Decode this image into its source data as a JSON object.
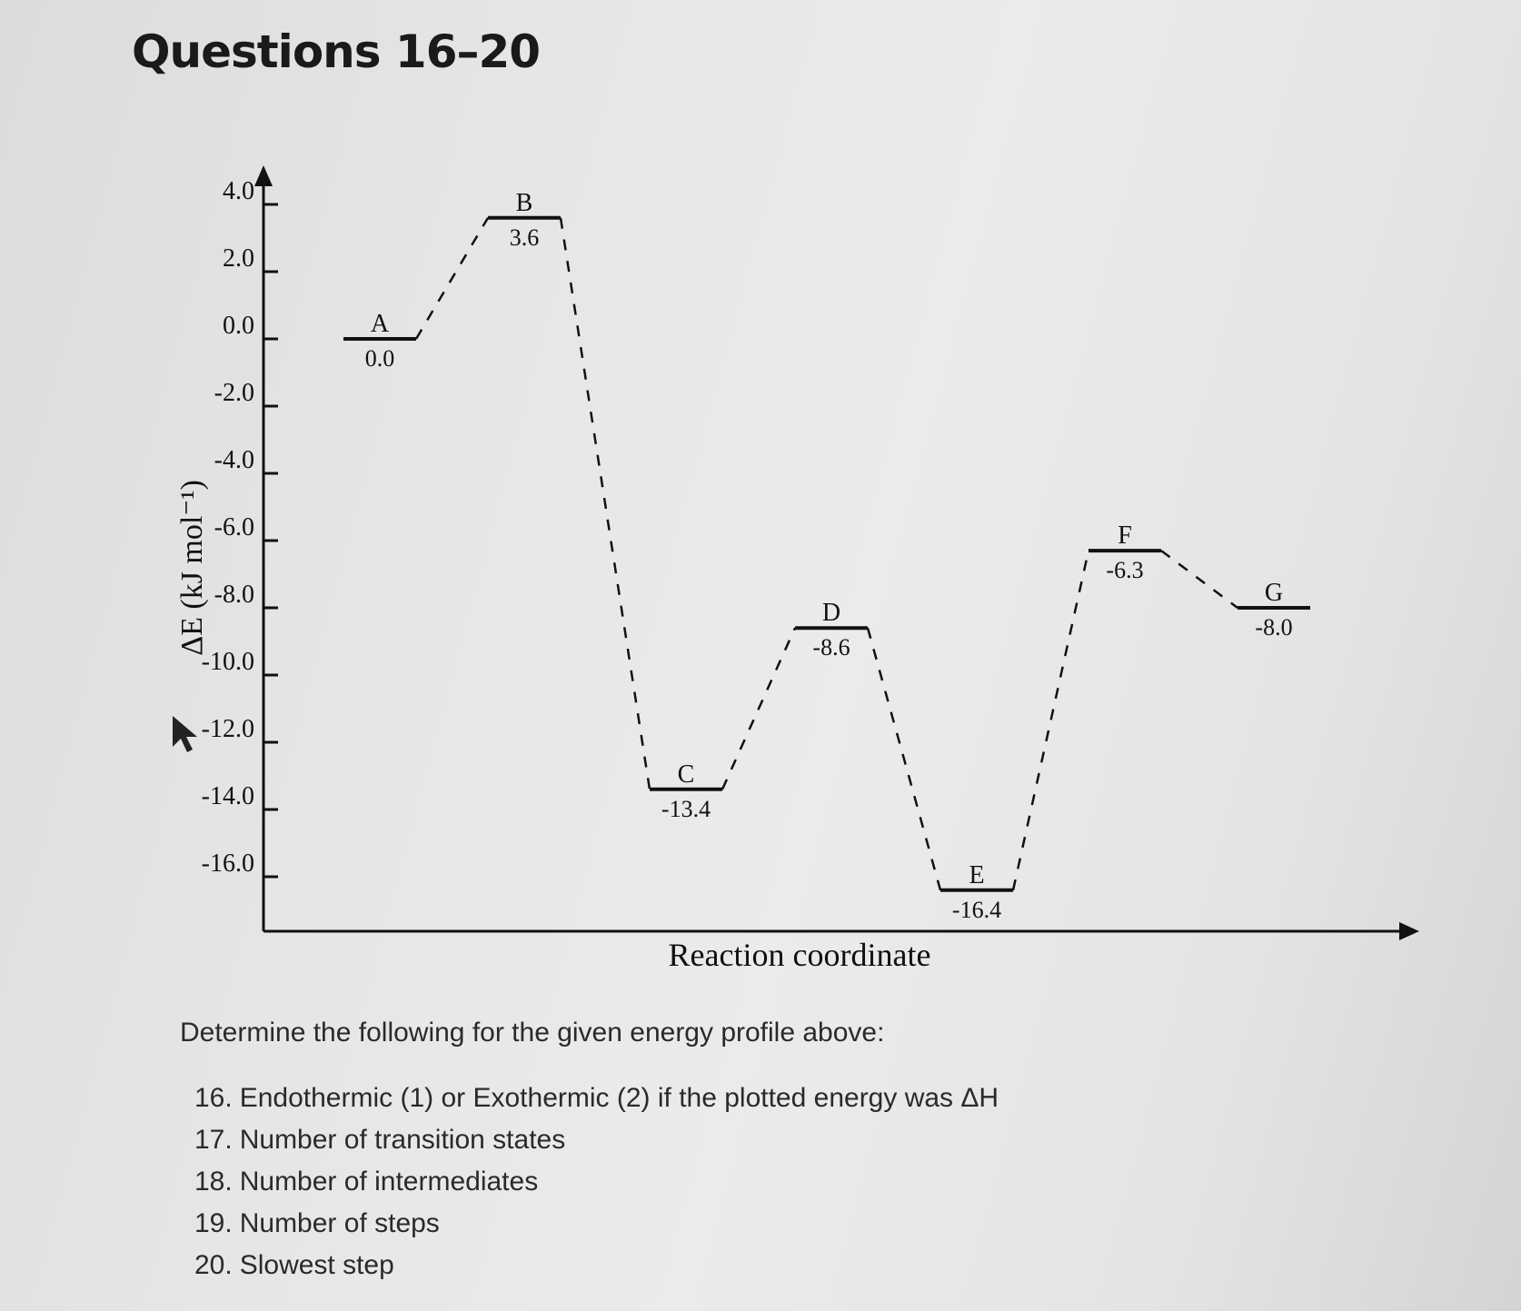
{
  "header": {
    "title": "Questions 16–20"
  },
  "chart_data": {
    "type": "line",
    "subtype": "energy-profile",
    "title": "",
    "xlabel": "Reaction coordinate",
    "ylabel": "ΔE (kJ mol⁻¹)",
    "ylim": [
      -16.0,
      4.0
    ],
    "yticks": [
      4.0,
      2.0,
      0.0,
      -2.0,
      -4.0,
      -6.0,
      -8.0,
      -10.0,
      -12.0,
      -14.0,
      -16.0
    ],
    "ytick_labels": [
      "4.0",
      "2.0",
      "0.0",
      "-2.0",
      "-4.0",
      "-6.0",
      "-8.0",
      "-10.0",
      "-12.0",
      "-14.0",
      "-16.0"
    ],
    "grid": false,
    "legend": "none",
    "points": [
      {
        "label": "A",
        "value": 0.0,
        "value_label": "0.0"
      },
      {
        "label": "B",
        "value": 3.6,
        "value_label": "3.6"
      },
      {
        "label": "C",
        "value": -13.4,
        "value_label": "-13.4"
      },
      {
        "label": "D",
        "value": -8.6,
        "value_label": "-8.6"
      },
      {
        "label": "E",
        "value": -16.4,
        "value_label": "-16.4"
      },
      {
        "label": "F",
        "value": -6.3,
        "value_label": "-6.3"
      },
      {
        "label": "G",
        "value": -8.0,
        "value_label": "-8.0"
      }
    ],
    "connector_style": "dashed"
  },
  "questions": {
    "prompt": "Determine the following for the given energy profile above:",
    "items": [
      {
        "num": "16.",
        "text": "Endothermic (1) or Exothermic (2) if the plotted energy was ΔH"
      },
      {
        "num": "17.",
        "text": "Number of transition states"
      },
      {
        "num": "18.",
        "text": "Number of intermediates"
      },
      {
        "num": "19.",
        "text": "Number of steps"
      },
      {
        "num": "20.",
        "text": "Slowest step"
      }
    ]
  }
}
